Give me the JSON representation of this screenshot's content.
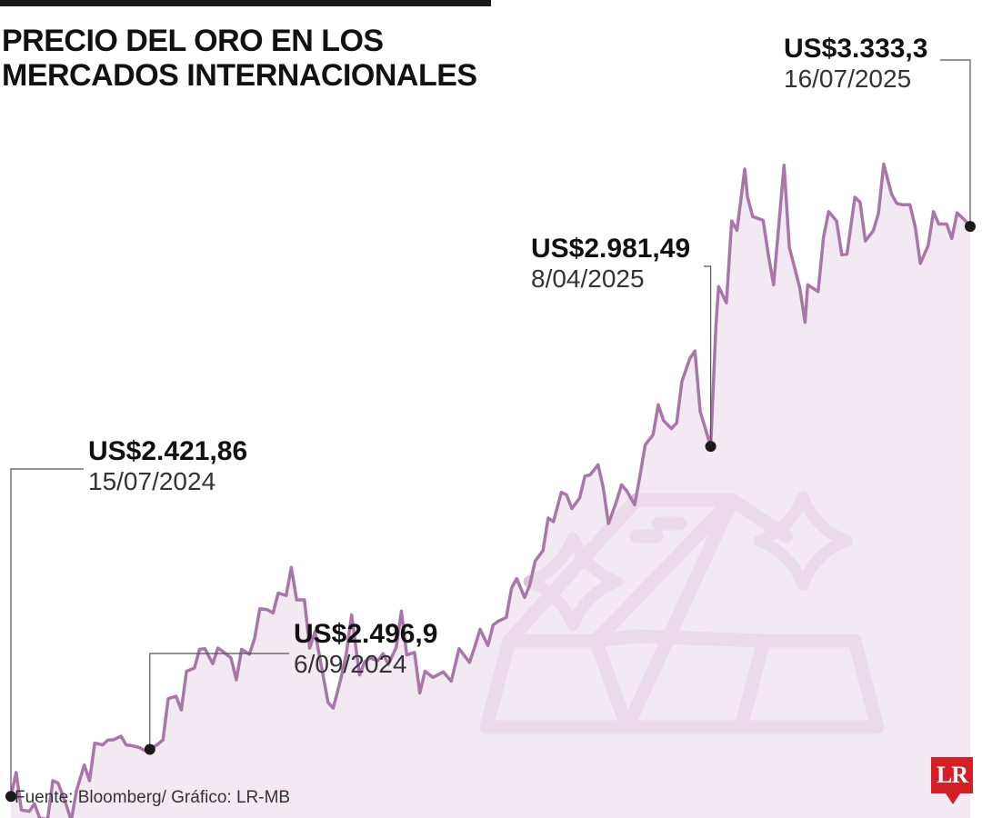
{
  "title": "PRECIO DEL ORO EN LOS MERCADOS INTERNACIONALES",
  "source": "Fuente: Bloomberg/ Gráfico: LR-MB",
  "logo": "LR",
  "colors": {
    "line": "#a877a8",
    "fill": "#efe2ef",
    "icon": "#dcc2dc",
    "marker": "#1a1a1a",
    "logo": "#d41f26"
  },
  "icon_name": "gold-bars-sparkle-icon",
  "annotations": [
    {
      "value": "US$2.421,86",
      "date": "15/07/2024"
    },
    {
      "value": "US$2.496,9",
      "date": "6/09/2024"
    },
    {
      "value": "US$2.981,49",
      "date": "8/04/2025"
    },
    {
      "value": "US$3.333,3",
      "date": "16/07/2025"
    }
  ],
  "chart_data": {
    "type": "area",
    "title": "PRECIO DEL ORO EN LOS MERCADOS INTERNACIONALES",
    "xlabel": "",
    "ylabel": "",
    "grid": false,
    "legend": "none",
    "x_range": [
      "2024-07-15",
      "2025-07-16"
    ],
    "ylim": [
      2300,
      3550
    ],
    "series": [
      {
        "points": [
          [
            "2024-07-15",
            2421.86
          ],
          [
            "2024-07-17",
            2460
          ],
          [
            "2024-07-19",
            2400
          ],
          [
            "2024-07-22",
            2398
          ],
          [
            "2024-07-24",
            2410
          ],
          [
            "2024-07-26",
            2387
          ],
          [
            "2024-07-29",
            2385
          ],
          [
            "2024-07-31",
            2447
          ],
          [
            "2024-08-02",
            2443
          ],
          [
            "2024-08-05",
            2410
          ],
          [
            "2024-08-07",
            2383
          ],
          [
            "2024-08-09",
            2431
          ],
          [
            "2024-08-12",
            2472
          ],
          [
            "2024-08-14",
            2447
          ],
          [
            "2024-08-16",
            2507
          ],
          [
            "2024-08-19",
            2504
          ],
          [
            "2024-08-21",
            2512
          ],
          [
            "2024-08-23",
            2512
          ],
          [
            "2024-08-26",
            2518
          ],
          [
            "2024-08-28",
            2504
          ],
          [
            "2024-08-30",
            2503
          ],
          [
            "2024-09-02",
            2500
          ],
          [
            "2024-09-04",
            2495
          ],
          [
            "2024-09-06",
            2496.9
          ],
          [
            "2024-09-09",
            2505
          ],
          [
            "2024-09-11",
            2512
          ],
          [
            "2024-09-13",
            2578
          ],
          [
            "2024-09-16",
            2582
          ],
          [
            "2024-09-18",
            2560
          ],
          [
            "2024-09-20",
            2622
          ],
          [
            "2024-09-23",
            2627
          ],
          [
            "2024-09-25",
            2657
          ],
          [
            "2024-09-27",
            2658
          ],
          [
            "2024-09-30",
            2634
          ],
          [
            "2024-10-02",
            2659
          ],
          [
            "2024-10-04",
            2653
          ],
          [
            "2024-10-07",
            2643
          ],
          [
            "2024-10-09",
            2608
          ],
          [
            "2024-10-11",
            2657
          ],
          [
            "2024-10-14",
            2649
          ],
          [
            "2024-10-16",
            2675
          ],
          [
            "2024-10-18",
            2722
          ],
          [
            "2024-10-21",
            2720
          ],
          [
            "2024-10-23",
            2715
          ],
          [
            "2024-10-25",
            2747
          ],
          [
            "2024-10-28",
            2743
          ],
          [
            "2024-10-30",
            2788
          ],
          [
            "2024-11-01",
            2736
          ],
          [
            "2024-11-04",
            2736
          ],
          [
            "2024-11-06",
            2659
          ],
          [
            "2024-11-08",
            2685
          ],
          [
            "2024-11-11",
            2618
          ],
          [
            "2024-11-13",
            2572
          ],
          [
            "2024-11-15",
            2563
          ],
          [
            "2024-11-18",
            2612
          ],
          [
            "2024-11-20",
            2651
          ],
          [
            "2024-11-22",
            2712
          ],
          [
            "2024-11-25",
            2616
          ],
          [
            "2024-11-27",
            2637
          ],
          [
            "2024-11-29",
            2643
          ],
          [
            "2024-12-02",
            2639
          ],
          [
            "2024-12-04",
            2650
          ],
          [
            "2024-12-06",
            2633
          ],
          [
            "2024-12-09",
            2660
          ],
          [
            "2024-12-11",
            2718
          ],
          [
            "2024-12-13",
            2648
          ],
          [
            "2024-12-16",
            2652
          ],
          [
            "2024-12-18",
            2587
          ],
          [
            "2024-12-20",
            2622
          ],
          [
            "2024-12-23",
            2612
          ],
          [
            "2024-12-27",
            2621
          ],
          [
            "2024-12-30",
            2606
          ],
          [
            "2025-01-02",
            2658
          ],
          [
            "2025-01-06",
            2636
          ],
          [
            "2025-01-08",
            2661
          ],
          [
            "2025-01-10",
            2689
          ],
          [
            "2025-01-13",
            2663
          ],
          [
            "2025-01-15",
            2696
          ],
          [
            "2025-01-17",
            2702
          ],
          [
            "2025-01-20",
            2708
          ],
          [
            "2025-01-22",
            2755
          ],
          [
            "2025-01-24",
            2770
          ],
          [
            "2025-01-27",
            2740
          ],
          [
            "2025-01-29",
            2760
          ],
          [
            "2025-01-31",
            2798
          ],
          [
            "2025-02-03",
            2815
          ],
          [
            "2025-02-05",
            2867
          ],
          [
            "2025-02-07",
            2861
          ],
          [
            "2025-02-10",
            2908
          ],
          [
            "2025-02-12",
            2904
          ],
          [
            "2025-02-14",
            2882
          ],
          [
            "2025-02-17",
            2899
          ],
          [
            "2025-02-19",
            2934
          ],
          [
            "2025-02-21",
            2936
          ],
          [
            "2025-02-24",
            2952
          ],
          [
            "2025-02-26",
            2916
          ],
          [
            "2025-02-28",
            2858
          ],
          [
            "2025-03-03",
            2893
          ],
          [
            "2025-03-05",
            2920
          ],
          [
            "2025-03-07",
            2910
          ],
          [
            "2025-03-10",
            2888
          ],
          [
            "2025-03-12",
            2934
          ],
          [
            "2025-03-14",
            2984
          ],
          [
            "2025-03-17",
            3000
          ],
          [
            "2025-03-19",
            3048
          ],
          [
            "2025-03-21",
            3023
          ],
          [
            "2025-03-24",
            3010
          ],
          [
            "2025-03-26",
            3019
          ],
          [
            "2025-03-28",
            3085
          ],
          [
            "2025-03-31",
            3122
          ],
          [
            "2025-04-02",
            3134
          ],
          [
            "2025-04-04",
            3037
          ],
          [
            "2025-04-08",
            2981.49
          ],
          [
            "2025-04-10",
            3175
          ],
          [
            "2025-04-11",
            3237
          ],
          [
            "2025-04-14",
            3211
          ],
          [
            "2025-04-16",
            3342
          ],
          [
            "2025-04-18",
            3327
          ],
          [
            "2025-04-21",
            3425
          ],
          [
            "2025-04-22",
            3381
          ],
          [
            "2025-04-24",
            3349
          ],
          [
            "2025-04-28",
            3343
          ],
          [
            "2025-04-30",
            3288
          ],
          [
            "2025-05-02",
            3240
          ],
          [
            "2025-05-06",
            3431
          ],
          [
            "2025-05-08",
            3300
          ],
          [
            "2025-05-12",
            3235
          ],
          [
            "2025-05-14",
            3180
          ],
          [
            "2025-05-15",
            3240
          ],
          [
            "2025-05-19",
            3229
          ],
          [
            "2025-05-21",
            3315
          ],
          [
            "2025-05-23",
            3357
          ],
          [
            "2025-05-26",
            3342
          ],
          [
            "2025-05-28",
            3288
          ],
          [
            "2025-05-30",
            3289
          ],
          [
            "2025-06-02",
            3380
          ],
          [
            "2025-06-04",
            3372
          ],
          [
            "2025-06-06",
            3310
          ],
          [
            "2025-06-09",
            3326
          ],
          [
            "2025-06-11",
            3354
          ],
          [
            "2025-06-13",
            3433
          ],
          [
            "2025-06-16",
            3385
          ],
          [
            "2025-06-18",
            3370
          ],
          [
            "2025-06-20",
            3368
          ],
          [
            "2025-06-23",
            3368
          ],
          [
            "2025-06-25",
            3333
          ],
          [
            "2025-06-27",
            3274
          ],
          [
            "2025-06-30",
            3303
          ],
          [
            "2025-07-02",
            3357
          ],
          [
            "2025-07-04",
            3337
          ],
          [
            "2025-07-07",
            3337
          ],
          [
            "2025-07-09",
            3314
          ],
          [
            "2025-07-11",
            3355
          ],
          [
            "2025-07-14",
            3343
          ],
          [
            "2025-07-16",
            3333.3
          ]
        ]
      }
    ]
  }
}
